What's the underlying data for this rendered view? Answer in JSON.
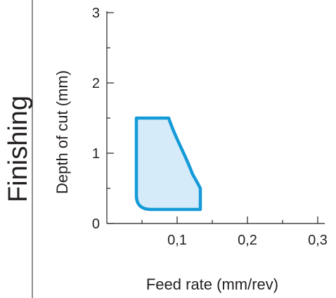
{
  "side_title": "Finishing",
  "chart_data": {
    "type": "area",
    "xlabel": "Feed rate (mm/rev)",
    "ylabel": "Depth of cut (mm)",
    "xlim": [
      0,
      0.3
    ],
    "ylim": [
      0,
      3
    ],
    "x_ticks": [
      {
        "value": 0.1,
        "label": "0,1"
      },
      {
        "value": 0.2,
        "label": "0,2"
      },
      {
        "value": 0.3,
        "label": "0,3"
      }
    ],
    "y_ticks": [
      {
        "value": 0,
        "label": "0"
      },
      {
        "value": 1,
        "label": "1"
      },
      {
        "value": 2,
        "label": "2"
      },
      {
        "value": 3,
        "label": "3"
      }
    ],
    "minor_step": 0.5,
    "x_minor_step": 0.05,
    "region": {
      "outline": [
        [
          0.042,
          1.5
        ],
        [
          0.088,
          1.5
        ],
        [
          0.098,
          1.2
        ],
        [
          0.11,
          0.92
        ],
        [
          0.122,
          0.7
        ],
        [
          0.133,
          0.5
        ],
        [
          0.133,
          0.2
        ],
        [
          0.063,
          0.2
        ],
        [
          0.042,
          0.4
        ]
      ],
      "fill_color": "#d6ebfa",
      "stroke_color": "#159bd7"
    },
    "grid": false
  }
}
